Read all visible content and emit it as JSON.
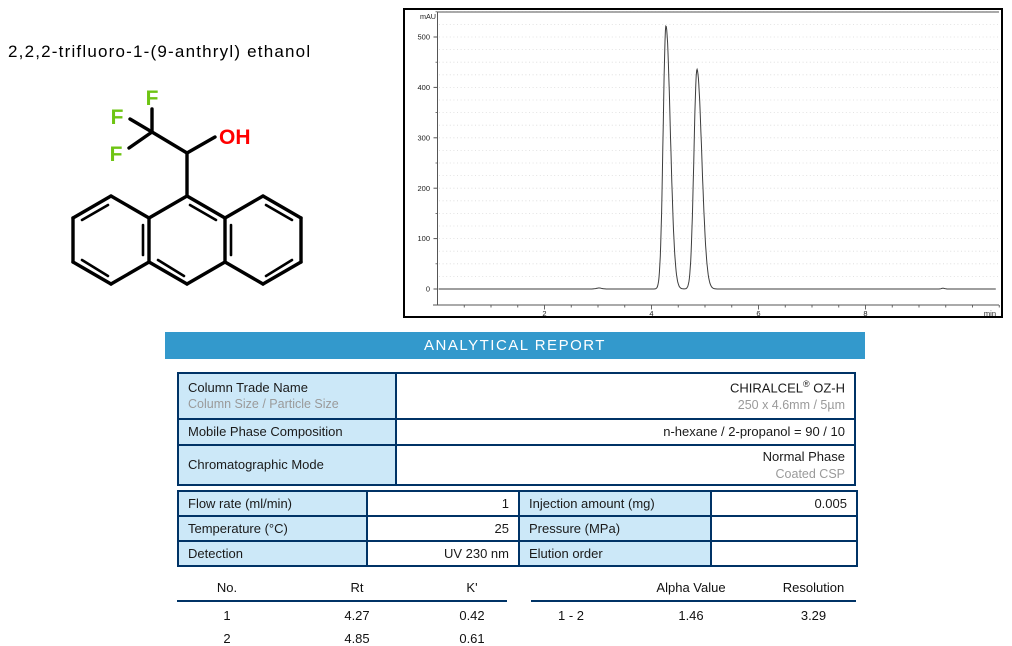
{
  "compound": {
    "name": "2,2,2-trifluoro-1-(9-anthryl) ethanol",
    "structure_labels": {
      "f1": "F",
      "f2": "F",
      "f3": "F",
      "oh": "OH"
    },
    "colors": {
      "fluorine": "#6ec413",
      "hydroxyl": "#ff0000",
      "bond": "#000000"
    }
  },
  "report": {
    "banner_title": "ANALYTICAL REPORT",
    "colors": {
      "banner_bg": "#3399cc",
      "banner_fg": "#ffffff",
      "table_border": "#003366",
      "label_cell_bg": "#cce8f8",
      "subtext": "#9a9a9a"
    }
  },
  "analysis_conditions": {
    "column": {
      "rows": [
        {
          "label": "Column Trade Name",
          "sublabel": "Column Size / Particle Size",
          "value_brand": "CHIRALCEL",
          "value_reg": "®",
          "value_model": " OZ-H",
          "subvalue": "250 x 4.6mm / 5µm"
        },
        {
          "label": "Mobile Phase Composition",
          "value": "n-hexane / 2-propanol = 90 / 10"
        },
        {
          "label": "Chromatographic Mode",
          "value": "Normal Phase",
          "subvalue": "Coated CSP"
        }
      ]
    },
    "parameters": {
      "rows": [
        {
          "label": "Flow rate (ml/min)",
          "value": "1",
          "label2": "Injection amount (mg)",
          "value2": "0.005"
        },
        {
          "label": "Temperature (°C)",
          "value": "25",
          "label2": "Pressure (MPa)",
          "value2": ""
        },
        {
          "label": "Detection",
          "value": "UV 230 nm",
          "label2": "Elution order",
          "value2": ""
        }
      ]
    }
  },
  "results": {
    "peak_table": {
      "headers": {
        "no": "No.",
        "rt": "Rt",
        "k": "K'"
      },
      "rows": [
        {
          "no": "1",
          "rt": "4.27",
          "k": "0.42"
        },
        {
          "no": "2",
          "rt": "4.85",
          "k": "0.61"
        }
      ]
    },
    "separation_table": {
      "headers": {
        "pair": "",
        "alpha": "Alpha Value",
        "res": "Resolution"
      },
      "rows": [
        {
          "pair": "1 - 2",
          "alpha": "1.46",
          "res": "3.29"
        }
      ]
    }
  },
  "chart_data": {
    "type": "line",
    "title": "HPLC chromatogram",
    "xlabel": "min",
    "ylabel": "mAU",
    "xlim": [
      0,
      10.5
    ],
    "ylim": [
      -30,
      560
    ],
    "x_major_ticks": [
      2,
      4,
      6,
      8
    ],
    "x_minor_step": 0.5,
    "y_major_ticks": [
      0,
      100,
      200,
      300,
      400,
      500
    ],
    "y_minor_step": 50,
    "grid": "dotted horizontal lines every 25 mAU",
    "legend": "none",
    "trace_color": "#3d3d3d",
    "baseline_mau": 0,
    "peaks": [
      {
        "no": 1,
        "rt_min": 4.27,
        "height_mau": 522,
        "sigma_lead": 0.052,
        "sigma_tail": 0.082
      },
      {
        "no": 2,
        "rt_min": 4.85,
        "height_mau": 436,
        "sigma_lead": 0.058,
        "sigma_tail": 0.09
      }
    ],
    "baseline_blips": [
      {
        "t": 3.02,
        "h": 2,
        "s": 0.05
      },
      {
        "t": 9.45,
        "h": 1.5,
        "s": 0.03
      }
    ]
  }
}
